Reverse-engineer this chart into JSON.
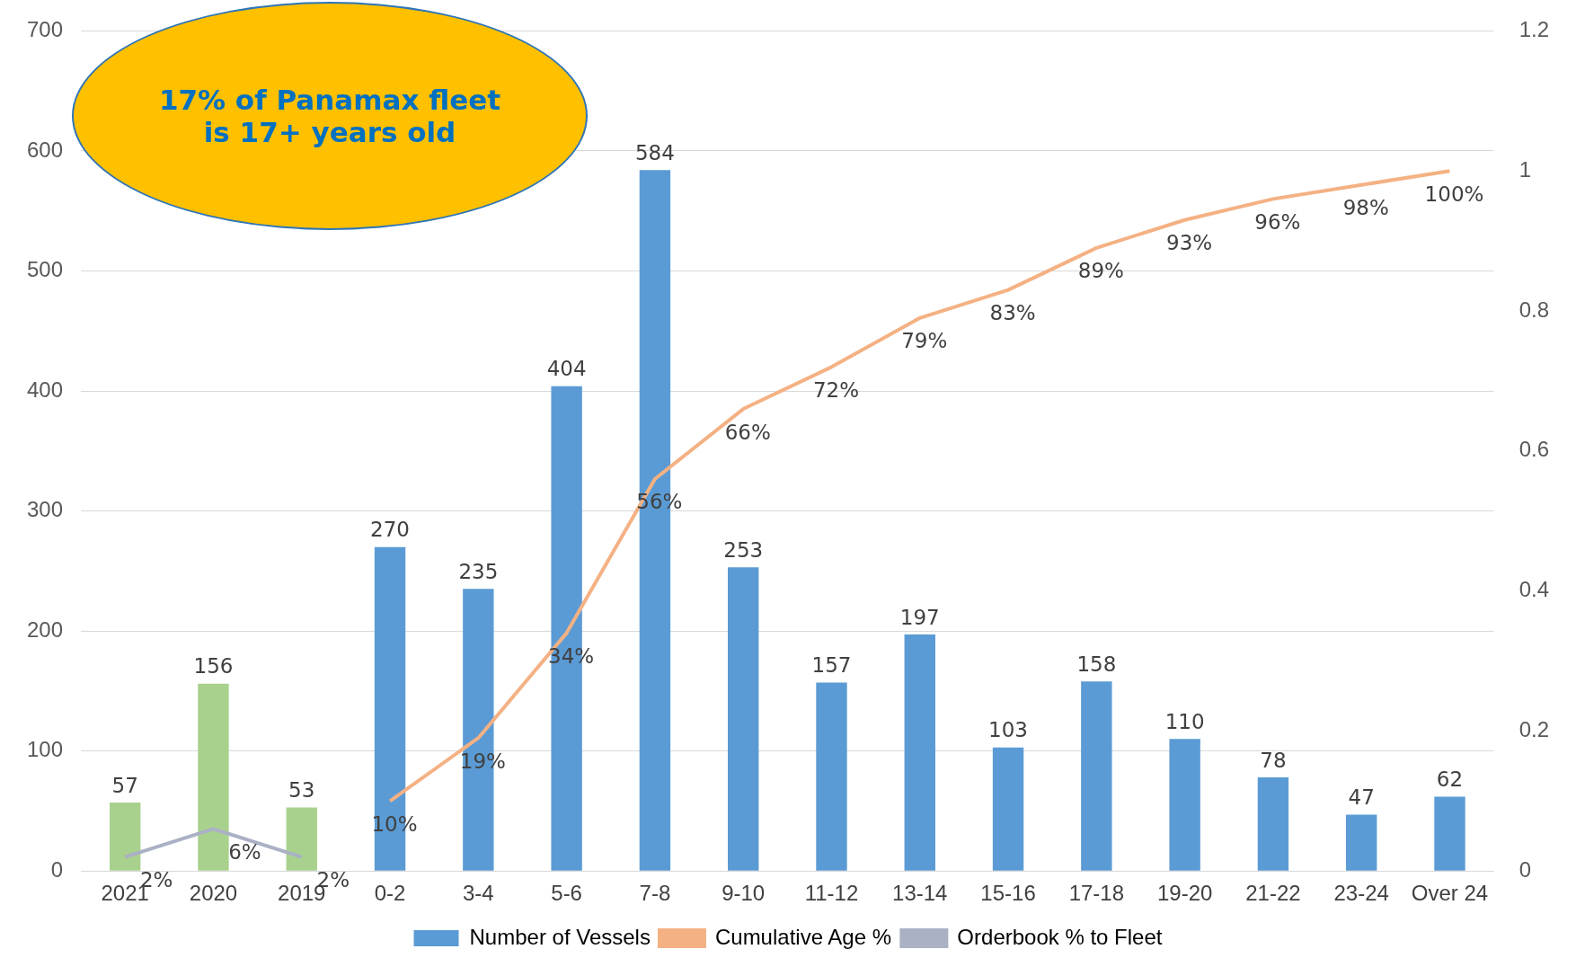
{
  "chart_data": {
    "type": "bar",
    "categories": [
      "2021",
      "2020",
      "2019",
      "0-2",
      "3-4",
      "5-6",
      "7-8",
      "9-10",
      "11-12",
      "13-14",
      "15-16",
      "17-18",
      "19-20",
      "21-22",
      "23-24",
      "Over 24"
    ],
    "series": [
      {
        "name": "Number of Vessels",
        "color": "#5b9bd5",
        "colors": [
          "#a9d18e",
          "#a9d18e",
          "#a9d18e",
          "#5b9bd5",
          "#5b9bd5",
          "#5b9bd5",
          "#5b9bd5",
          "#5b9bd5",
          "#5b9bd5",
          "#5b9bd5",
          "#5b9bd5",
          "#5b9bd5",
          "#5b9bd5",
          "#5b9bd5",
          "#5b9bd5",
          "#5b9bd5"
        ],
        "values": [
          57,
          156,
          53,
          270,
          235,
          404,
          584,
          253,
          157,
          197,
          103,
          158,
          110,
          78,
          47,
          62
        ],
        "value_labels": [
          "57",
          "156",
          "53",
          "270",
          "235",
          "404",
          "584",
          "253",
          "157",
          "197",
          "103",
          "158",
          "110",
          "78",
          "47",
          "62"
        ]
      },
      {
        "name": "Cumulative Age %",
        "type": "line",
        "axis": "y2",
        "color": "#f4b183",
        "values": [
          null,
          null,
          null,
          0.1,
          0.19,
          0.34,
          0.56,
          0.66,
          0.72,
          0.79,
          0.83,
          0.89,
          0.93,
          0.96,
          0.98,
          1.0
        ],
        "value_labels": [
          null,
          null,
          null,
          "10%",
          "19%",
          "34%",
          "56%",
          "66%",
          "72%",
          "79%",
          "83%",
          "89%",
          "93%",
          "96%",
          "98%",
          "100%"
        ]
      },
      {
        "name": "Orderbook % to Fleet",
        "type": "line",
        "axis": "y2",
        "color": "#aab1c4",
        "values": [
          0.02,
          0.06,
          0.02,
          null,
          null,
          null,
          null,
          null,
          null,
          null,
          null,
          null,
          null,
          null,
          null,
          null
        ],
        "value_labels": [
          "2%",
          "6%",
          "2%",
          null,
          null,
          null,
          null,
          null,
          null,
          null,
          null,
          null,
          null,
          null,
          null,
          null
        ]
      }
    ],
    "ylim": [
      0,
      700
    ],
    "yticks": [
      0,
      100,
      200,
      300,
      400,
      500,
      600,
      700
    ],
    "y2lim": [
      0,
      1.2
    ],
    "y2ticks": [
      0,
      {
        "value": 0.2,
        "label": "0.2"
      },
      {
        "value": 0.4,
        "label": "0.4"
      },
      {
        "value": 0.6,
        "label": "0.6"
      },
      {
        "value": 0.8,
        "label": "0.8"
      },
      1,
      {
        "value": 1.2,
        "label": "1.2"
      }
    ],
    "grid": "y",
    "legend": "bottom",
    "marker": "none",
    "line_style": "solid",
    "annotations": [
      "17% of Panamax fleet\nis 17+ years old"
    ]
  }
}
